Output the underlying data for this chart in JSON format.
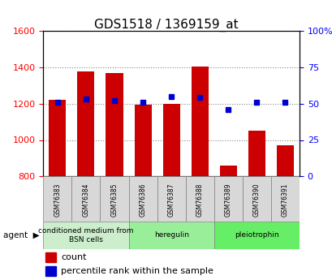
{
  "title": "GDS1518 / 1369159_at",
  "samples": [
    "GSM76383",
    "GSM76384",
    "GSM76385",
    "GSM76386",
    "GSM76387",
    "GSM76388",
    "GSM76389",
    "GSM76390",
    "GSM76391"
  ],
  "counts": [
    1220,
    1375,
    1370,
    1195,
    1200,
    1405,
    860,
    1050,
    970
  ],
  "percentiles": [
    51,
    53,
    52,
    51,
    55,
    54,
    46,
    51,
    51
  ],
  "ylim_left": [
    800,
    1600
  ],
  "ylim_right": [
    0,
    100
  ],
  "yticks_left": [
    800,
    1000,
    1200,
    1400,
    1600
  ],
  "yticks_right": [
    0,
    25,
    50,
    75,
    100
  ],
  "bar_color": "#cc0000",
  "dot_color": "#0000cc",
  "bar_bottom": 800,
  "agent_groups": [
    {
      "label": "conditioned medium from\nBSN cells",
      "start": 0,
      "end": 3,
      "color": "#ccffcc"
    },
    {
      "label": "heregulin",
      "start": 3,
      "end": 6,
      "color": "#99ff99"
    },
    {
      "label": "pleiotrophin",
      "start": 6,
      "end": 9,
      "color": "#66ff66"
    }
  ],
  "legend_red_label": "count",
  "legend_blue_label": "percentile rank within the sample",
  "agent_label": "agent",
  "bg_color": "#f0f0f0",
  "grid_color": "#888888"
}
